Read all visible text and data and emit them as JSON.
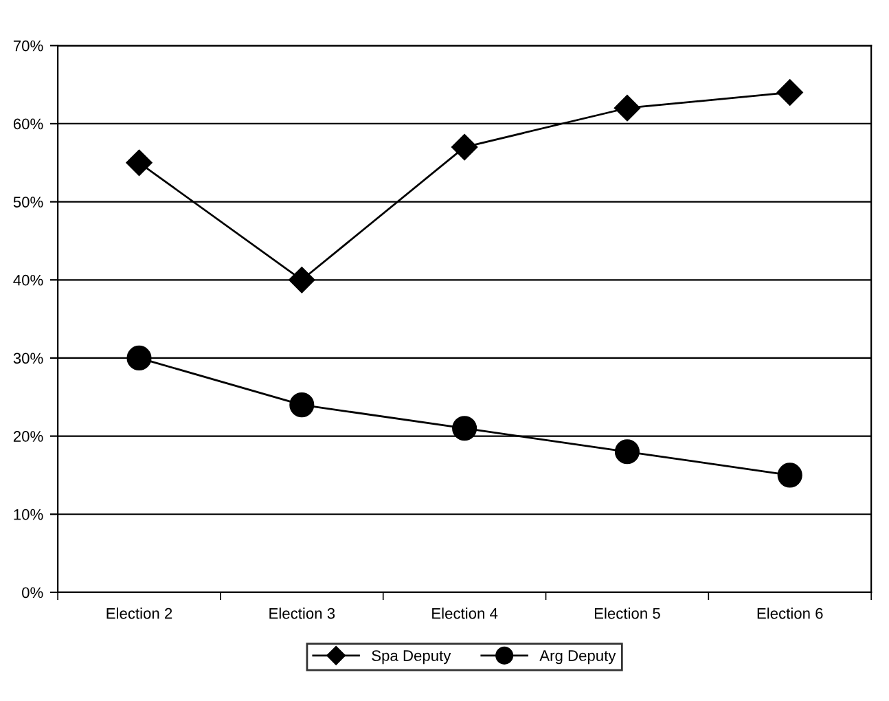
{
  "chart_data": {
    "type": "line",
    "categories": [
      "Election 2",
      "Election 3",
      "Election 4",
      "Election 5",
      "Election 6"
    ],
    "series": [
      {
        "name": "Spa Deputy",
        "color": "#000000",
        "marker": "diamond",
        "values": [
          55,
          40,
          57,
          62,
          64
        ]
      },
      {
        "name": "Arg Deputy",
        "color": "#000000",
        "marker": "circle",
        "values": [
          30,
          24,
          21,
          18,
          15
        ]
      }
    ],
    "ylim": [
      0,
      70
    ],
    "yticks": [
      {
        "value": 0,
        "label": "0%"
      },
      {
        "value": 10,
        "label": "10%"
      },
      {
        "value": 20,
        "label": "20%"
      },
      {
        "value": 30,
        "label": "30%"
      },
      {
        "value": 40,
        "label": "40%"
      },
      {
        "value": 50,
        "label": "50%"
      },
      {
        "value": 60,
        "label": "60%"
      },
      {
        "value": 70,
        "label": "70%"
      }
    ],
    "grid": "y",
    "legend": "bottom",
    "line_style": "solid"
  }
}
